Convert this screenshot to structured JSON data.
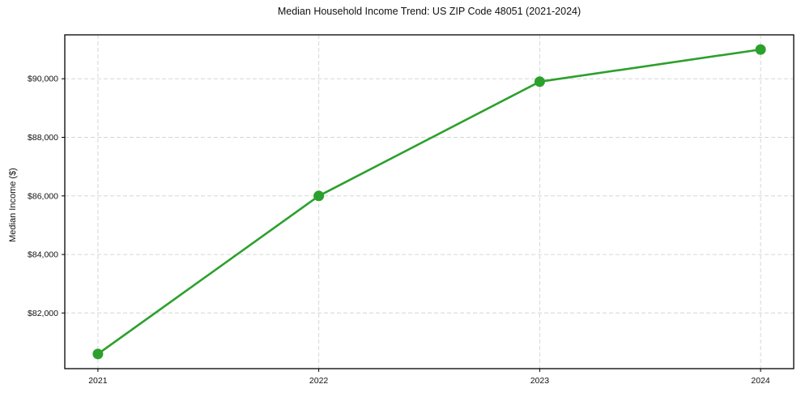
{
  "figure": {
    "title": "Median Household Income Trend: US ZIP Code 48051 (2021-2024)",
    "ylabel": "Median Income ($)"
  },
  "chart_data": {
    "type": "line",
    "title": "Median Household Income Trend: US ZIP Code 48051 (2021-2024)",
    "xlabel": "",
    "ylabel": "Median Income ($)",
    "x": [
      2021,
      2022,
      2023,
      2024
    ],
    "series": [
      {
        "name": "Median Household Income",
        "values": [
          80600,
          86000,
          89900,
          91000
        ]
      }
    ],
    "xtick_labels": [
      "2021",
      "2022",
      "2023",
      "2024"
    ],
    "yticks": [
      82000,
      84000,
      86000,
      88000,
      90000
    ],
    "ytick_labels": [
      "$82,000",
      "$84,000",
      "$86,000",
      "$88,000",
      "$90,000"
    ],
    "xlim": [
      2020.85,
      2024.15
    ],
    "ylim": [
      80100,
      91500
    ],
    "grid": true,
    "grid_style": "dashed",
    "legend_position": "none",
    "line_color": "#2ca02c",
    "marker": "circle",
    "marker_radius": 6.5,
    "background_color": "#ffffff"
  }
}
